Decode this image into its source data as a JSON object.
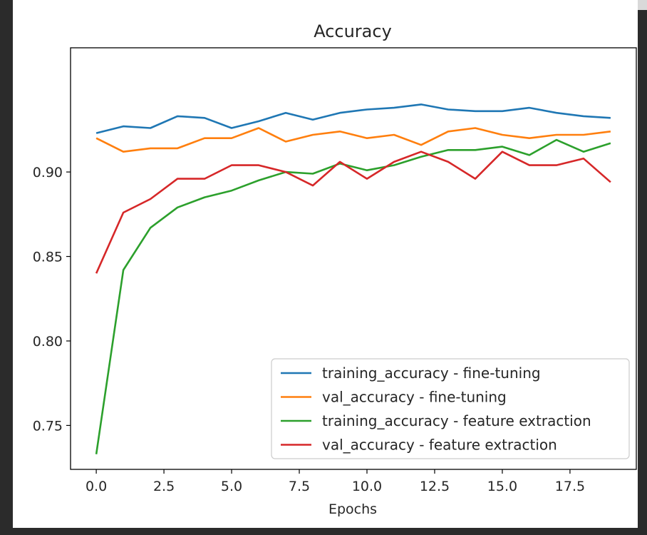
{
  "chart_data": {
    "type": "line",
    "title": "Accuracy",
    "xlabel": "Epochs",
    "ylabel": "",
    "xlim": [
      -0.95,
      19.95
    ],
    "ylim": [
      0.724,
      0.9735
    ],
    "xticks": [
      0,
      2.5,
      5,
      7.5,
      10,
      12.5,
      15,
      17.5
    ],
    "xtick_labels": [
      "0.0",
      "2.5",
      "5.0",
      "7.5",
      "10.0",
      "12.5",
      "15.0",
      "17.5"
    ],
    "yticks": [
      0.75,
      0.8,
      0.85,
      0.9
    ],
    "ytick_labels": [
      "0.75",
      "0.80",
      "0.85",
      "0.90"
    ],
    "grid": false,
    "legend_position": "lower-right",
    "x": [
      0,
      1,
      2,
      3,
      4,
      5,
      6,
      7,
      8,
      9,
      10,
      11,
      12,
      13,
      14,
      15,
      16,
      17,
      18,
      19
    ],
    "series": [
      {
        "name": "training_accuracy - fine-tuning",
        "color": "#1f77b4",
        "values": [
          0.923,
          0.927,
          0.926,
          0.933,
          0.932,
          0.926,
          0.93,
          0.935,
          0.931,
          0.935,
          0.937,
          0.938,
          0.94,
          0.937,
          0.936,
          0.936,
          0.938,
          0.935,
          0.933,
          0.932
        ]
      },
      {
        "name": "val_accuracy - fine-tuning",
        "color": "#ff7f0e",
        "values": [
          0.92,
          0.912,
          0.914,
          0.914,
          0.92,
          0.92,
          0.926,
          0.918,
          0.922,
          0.924,
          0.92,
          0.922,
          0.916,
          0.924,
          0.926,
          0.922,
          0.92,
          0.922,
          0.922,
          0.924
        ]
      },
      {
        "name": "training_accuracy - feature extraction",
        "color": "#2ca02c",
        "values": [
          0.733,
          0.842,
          0.867,
          0.879,
          0.885,
          0.889,
          0.895,
          0.9,
          0.899,
          0.905,
          0.901,
          0.904,
          0.909,
          0.913,
          0.913,
          0.915,
          0.91,
          0.919,
          0.912,
          0.917
        ]
      },
      {
        "name": "val_accuracy - feature extraction",
        "color": "#d62728",
        "values": [
          0.84,
          0.876,
          0.884,
          0.896,
          0.896,
          0.904,
          0.904,
          0.9,
          0.892,
          0.906,
          0.896,
          0.906,
          0.912,
          0.906,
          0.896,
          0.912,
          0.904,
          0.904,
          0.908,
          0.894
        ]
      }
    ]
  }
}
